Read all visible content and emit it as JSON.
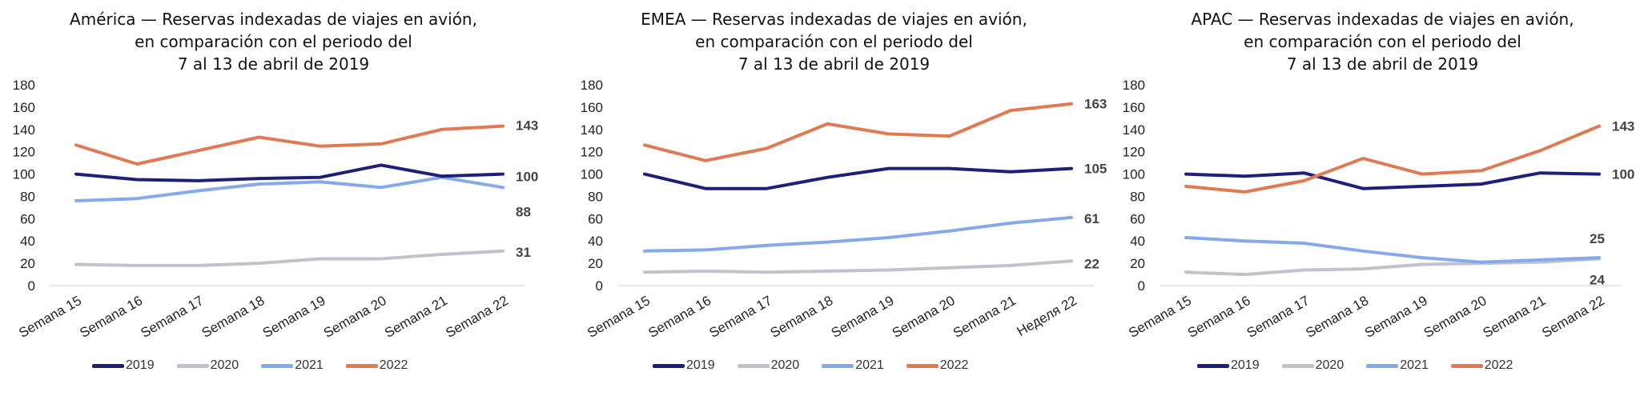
{
  "colors": {
    "2019": "#1f1f7a",
    "2020": "#c2c2cc",
    "2021": "#86a9ea",
    "2022": "#e07a52",
    "grid": "#d9d9d9"
  },
  "chart_data": [
    {
      "type": "line",
      "title_lines": [
        "América — Reservas indexadas de viajes en avión,",
        "en comparación con el periodo del",
        "7 al 13 de abril de 2019"
      ],
      "categories": [
        "Semana 15",
        "Semana 16",
        "Semana 17",
        "Semana 18",
        "Semana 19",
        "Semana 20",
        "Semana 21",
        "Semana 22"
      ],
      "ylim": [
        0,
        180
      ],
      "yticks": [
        0,
        20,
        40,
        60,
        80,
        100,
        120,
        140,
        160,
        180
      ],
      "grid": false,
      "legend_position": "bottom",
      "series": [
        {
          "name": "2019",
          "values": [
            100,
            95,
            94,
            96,
            97,
            108,
            98,
            100
          ]
        },
        {
          "name": "2020",
          "values": [
            19,
            18,
            18,
            20,
            24,
            24,
            28,
            31
          ]
        },
        {
          "name": "2021",
          "values": [
            76,
            78,
            85,
            91,
            93,
            88,
            97,
            88
          ]
        },
        {
          "name": "2022",
          "values": [
            126,
            109,
            121,
            133,
            125,
            127,
            140,
            143
          ]
        }
      ],
      "end_labels": [
        {
          "text": "143",
          "series": "2022"
        },
        {
          "text": "100",
          "series": "2019"
        },
        {
          "text": "88",
          "series": "2021"
        },
        {
          "text": "31",
          "series": "2020"
        }
      ]
    },
    {
      "type": "line",
      "title_lines": [
        "EMEA — Reservas indexadas de viajes en avión,",
        "en comparación con el periodo del",
        "7 al 13 de abril de 2019"
      ],
      "categories": [
        "Semana 15",
        "Semana 16",
        "Semana 17",
        "Semana 18",
        "Semana 19",
        "Semana 20",
        "Semana 21",
        "Неделя 22"
      ],
      "ylim": [
        0,
        180
      ],
      "yticks": [
        0,
        20,
        40,
        60,
        80,
        100,
        120,
        140,
        160,
        180
      ],
      "grid": false,
      "legend_position": "bottom",
      "series": [
        {
          "name": "2019",
          "values": [
            100,
            87,
            87,
            97,
            105,
            105,
            102,
            105
          ]
        },
        {
          "name": "2020",
          "values": [
            12,
            13,
            12,
            13,
            14,
            16,
            18,
            22
          ]
        },
        {
          "name": "2021",
          "values": [
            31,
            32,
            36,
            39,
            43,
            49,
            56,
            61
          ]
        },
        {
          "name": "2022",
          "values": [
            126,
            112,
            123,
            145,
            136,
            134,
            157,
            163
          ]
        }
      ],
      "end_labels": [
        {
          "text": "163",
          "series": "2022"
        },
        {
          "text": "105",
          "series": "2019"
        },
        {
          "text": "61",
          "series": "2021"
        },
        {
          "text": "22",
          "series": "2020"
        }
      ]
    },
    {
      "type": "line",
      "title_lines": [
        "APAC — Reservas indexadas de viajes en avión,",
        "en comparación con el periodo del",
        "7 al 13 de abril de 2019"
      ],
      "categories": [
        "Semana 15",
        "Semana 16",
        "Semana 17",
        "Semana 18",
        "Semana 19",
        "Semana 20",
        "Semana 21",
        "Semana 22"
      ],
      "ylim": [
        0,
        180
      ],
      "yticks": [
        0,
        20,
        40,
        60,
        80,
        100,
        120,
        140,
        160,
        180
      ],
      "grid": false,
      "legend_position": "bottom",
      "series": [
        {
          "name": "2019",
          "values": [
            100,
            98,
            101,
            87,
            89,
            91,
            101,
            100
          ]
        },
        {
          "name": "2020",
          "values": [
            12,
            10,
            14,
            15,
            19,
            20,
            21,
            24
          ]
        },
        {
          "name": "2021",
          "values": [
            43,
            40,
            38,
            31,
            25,
            21,
            23,
            25
          ]
        },
        {
          "name": "2022",
          "values": [
            89,
            84,
            94,
            114,
            100,
            103,
            121,
            143
          ]
        }
      ],
      "end_labels": [
        {
          "text": "143",
          "series": "2022"
        },
        {
          "text": "100",
          "series": "2019"
        },
        {
          "text": "25",
          "series": "2021"
        },
        {
          "text": "24",
          "series": "2020"
        }
      ]
    }
  ]
}
